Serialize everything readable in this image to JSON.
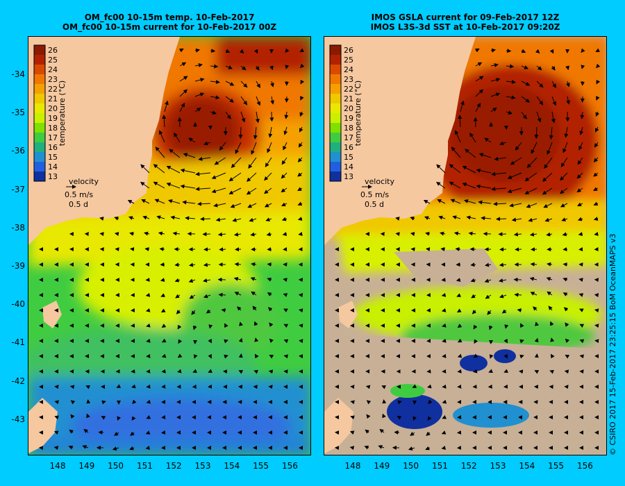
{
  "left_panel": {
    "title_line1": "OM_fc00 10-15m temp. 10-Feb-2017",
    "title_line2": "OM_fc00 10-15m current for 10-Feb-2017 00Z"
  },
  "right_panel": {
    "title_line1": "IMOS GSLA current for 09-Feb-2017 12Z",
    "title_line2": "IMOS L3S-3d SST at 10-Feb-2017 09:20Z"
  },
  "colorbar": {
    "label": "temperature (°C)",
    "ticks": [
      "26",
      "25",
      "24",
      "23",
      "22",
      "21",
      "20",
      "19",
      "18",
      "17",
      "16",
      "15",
      "14",
      "13"
    ],
    "colors": [
      "#8B1A00",
      "#B22200",
      "#D94A00",
      "#F07800",
      "#F5A000",
      "#F0C800",
      "#E8E800",
      "#C8F000",
      "#80E000",
      "#40CC40",
      "#20B080",
      "#2090D0",
      "#2060E0",
      "#1030A0"
    ]
  },
  "legend": {
    "title": "velocity",
    "speed": "0.5 m/s",
    "time": "0.5 d"
  },
  "axes": {
    "lat_ticks": [
      "-34",
      "-35",
      "-36",
      "-37",
      "-38",
      "-39",
      "-40",
      "-41",
      "-42",
      "-43"
    ],
    "lon_ticks": [
      "148",
      "149",
      "150",
      "151",
      "152",
      "153",
      "154",
      "155",
      "156"
    ]
  },
  "copyright": "© CSIRO 2017   15-Feb-2017 23:25:15 BoM OceanMAPS v3",
  "colors": {
    "background": "#00CCFF",
    "land": "#F5C8A0",
    "missing": "#C8B096"
  }
}
